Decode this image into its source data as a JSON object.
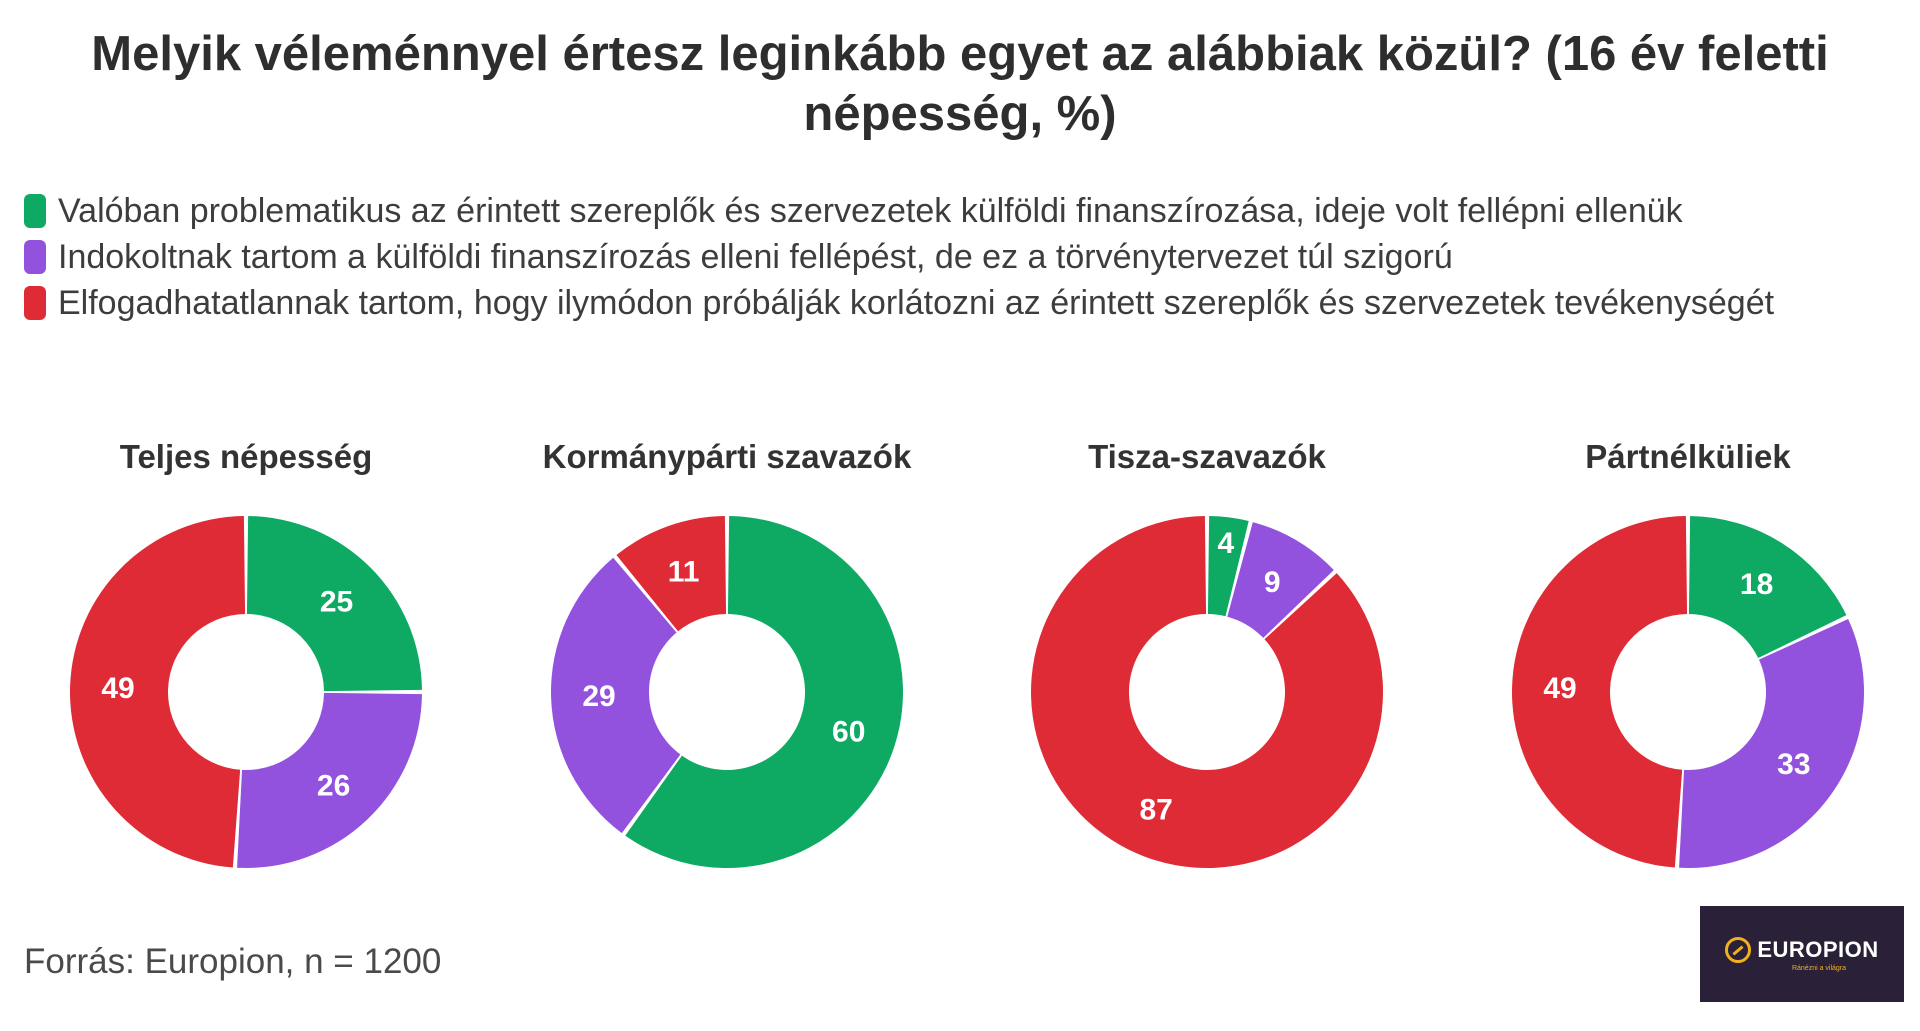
{
  "title": "Melyik véleménnyel értesz leginkább egyet az alábbiak közül? (16 év feletti népesség, %)",
  "legend": [
    {
      "label": "Valóban problematikus az érintett szereplők és szervezetek külföldi finanszírozása, ideje volt fellépni ellenük",
      "color": "#0eaa63"
    },
    {
      "label": "Indokoltnak tartom a külföldi finanszírozás elleni fellépést, de ez a törvénytervezet túl szigorú",
      "color": "#9352de"
    },
    {
      "label": "Elfogadhatatlannak tartom, hogy ilymódon próbálják korlátozni az érintett szereplők és szervezetek tevékenységét",
      "color": "#df2b36"
    }
  ],
  "chart_data": [
    {
      "type": "pie",
      "title": "Teljes népesség",
      "categories": [
        "Valóban problematikus",
        "Indokoltnak tartom",
        "Elfogadhatatlannak tartom"
      ],
      "values": [
        25,
        26,
        49
      ]
    },
    {
      "type": "pie",
      "title": "Kormánypárti szavazók",
      "categories": [
        "Valóban problematikus",
        "Indokoltnak tartom",
        "Elfogadhatatlannak tartom"
      ],
      "values": [
        60,
        29,
        11
      ]
    },
    {
      "type": "pie",
      "title": "Tisza-szavazók",
      "categories": [
        "Valóban problematikus",
        "Indokoltnak tartom",
        "Elfogadhatatlannak tartom"
      ],
      "values": [
        4,
        9,
        87
      ]
    },
    {
      "type": "pie",
      "title": "Pártnélküliek",
      "categories": [
        "Valóban problematikus",
        "Indokoltnak tartom",
        "Elfogadhatatlannak tartom"
      ],
      "values": [
        18,
        33,
        49
      ]
    }
  ],
  "source": "Forrás: Europion, n = 1200",
  "logo": {
    "text": "EUROPION",
    "tagline": "Ránézni a világra"
  }
}
